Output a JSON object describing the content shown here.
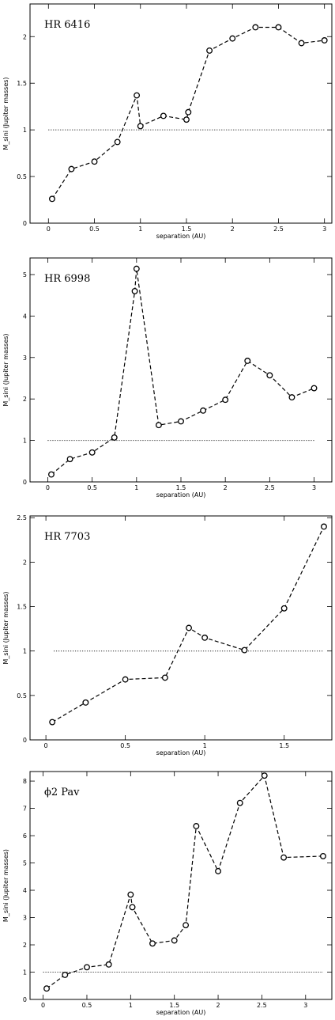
{
  "chart_data": [
    {
      "type": "line",
      "title": "HR 6416",
      "xlabel": "separation (AU)",
      "ylabel": "M_sini (Jupiter masses)",
      "xlim": [
        -0.2,
        3.08
      ],
      "ylim": [
        0,
        2.35
      ],
      "xticks": [
        "0",
        "0.5",
        "1",
        "1.5",
        "2",
        "2.5",
        "3"
      ],
      "yticks": [
        "0",
        "0.5",
        "1",
        "1.5",
        "2"
      ],
      "reference_line": {
        "y": 1,
        "x_range": [
          0,
          3
        ]
      },
      "series": [
        {
          "x": [
            0.04,
            0.25,
            0.5,
            0.75,
            0.96,
            1.0,
            1.25,
            1.5,
            1.52,
            1.75,
            2.0,
            2.25,
            2.5,
            2.75,
            3.0
          ],
          "y": [
            0.26,
            0.58,
            0.66,
            0.87,
            1.37,
            1.04,
            1.15,
            1.11,
            1.19,
            1.85,
            1.98,
            2.1,
            2.1,
            1.93,
            1.96
          ]
        }
      ]
    },
    {
      "type": "line",
      "title": "HR 6998",
      "xlabel": "separation (AU)",
      "ylabel": "M_sini (Jupiter masses)",
      "xlim": [
        -0.2,
        3.2
      ],
      "ylim": [
        0,
        5.4
      ],
      "xticks": [
        "0",
        "0.5",
        "1",
        "1.5",
        "2",
        "2.5",
        "3"
      ],
      "yticks": [
        "0",
        "1",
        "2",
        "3",
        "4",
        "5"
      ],
      "reference_line": {
        "y": 1,
        "x_range": [
          0,
          3
        ]
      },
      "series": [
        {
          "x": [
            0.04,
            0.25,
            0.5,
            0.75,
            0.98,
            1.0,
            1.25,
            1.5,
            1.75,
            2.0,
            2.25,
            2.5,
            2.75,
            3.0
          ],
          "y": [
            0.18,
            0.55,
            0.71,
            1.07,
            4.6,
            5.14,
            1.37,
            1.46,
            1.72,
            1.98,
            2.92,
            2.57,
            2.04,
            2.26
          ]
        }
      ]
    },
    {
      "type": "line",
      "title": "HR 7703",
      "xlabel": "separation (AU)",
      "ylabel": "M_sini (Jupiter masses)",
      "xlim": [
        -0.1,
        1.8
      ],
      "ylim": [
        0,
        2.52
      ],
      "xticks": [
        "0",
        "0.5",
        "1",
        "1.5"
      ],
      "yticks": [
        "0",
        "0.5",
        "1",
        "1.5",
        "2",
        "2.5"
      ],
      "reference_line": {
        "y": 1,
        "x_range": [
          0.05,
          1.75
        ]
      },
      "series": [
        {
          "x": [
            0.04,
            0.25,
            0.5,
            0.75,
            0.9,
            1.0,
            1.25,
            1.5,
            1.75
          ],
          "y": [
            0.2,
            0.42,
            0.68,
            0.7,
            1.26,
            1.15,
            1.01,
            1.48,
            2.4
          ]
        }
      ]
    },
    {
      "type": "line",
      "title": "ϕ2 Pav",
      "xlabel": "separation (AU)",
      "ylabel": "M_sini (Jupiter masses)",
      "xlim": [
        -0.15,
        3.3
      ],
      "ylim": [
        0,
        8.35
      ],
      "xticks": [
        "0",
        "0.5",
        "1",
        "1.5",
        "2",
        "2.5",
        "3"
      ],
      "yticks": [
        "0",
        "1",
        "2",
        "3",
        "4",
        "5",
        "6",
        "7",
        "8"
      ],
      "reference_line": {
        "y": 1,
        "x_range": [
          0,
          3.2
        ]
      },
      "series": [
        {
          "x": [
            0.04,
            0.25,
            0.5,
            0.75,
            1.0,
            1.02,
            1.25,
            1.5,
            1.63,
            1.75,
            2.0,
            2.25,
            2.53,
            2.75,
            3.2
          ],
          "y": [
            0.4,
            0.9,
            1.18,
            1.28,
            3.84,
            3.38,
            2.05,
            2.16,
            2.72,
            6.35,
            4.7,
            7.2,
            8.2,
            5.2,
            5.25
          ]
        }
      ]
    }
  ]
}
